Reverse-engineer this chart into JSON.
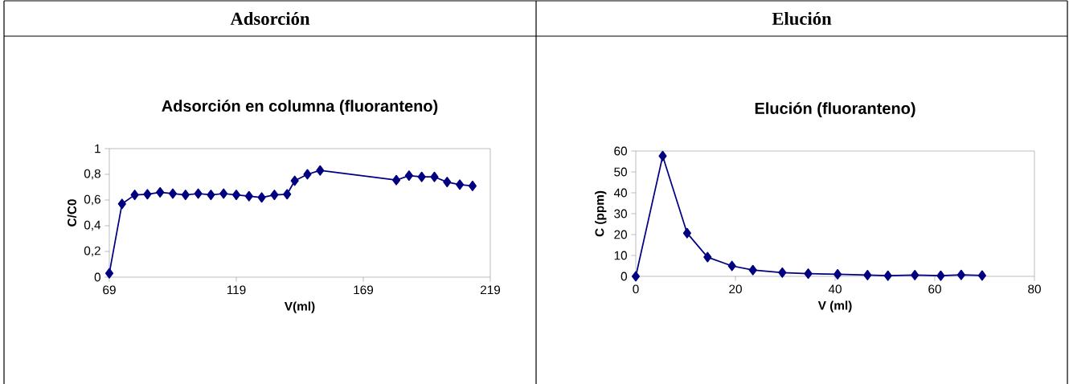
{
  "chart_data": [
    {
      "type": "line",
      "title": "Adsorción",
      "subtitle": "Adsorción en columna (fluoranteno)",
      "xlabel": "V(ml)",
      "ylabel": "C/C0",
      "x": [
        69,
        74,
        79,
        84,
        89,
        94,
        99,
        104,
        109,
        114,
        119,
        124,
        129,
        134,
        139,
        142,
        147,
        152,
        182,
        187,
        192,
        197,
        202,
        207,
        212
      ],
      "series": [
        {
          "color": "#000080",
          "values": [
            0.03,
            0.57,
            0.64,
            0.645,
            0.66,
            0.65,
            0.64,
            0.65,
            0.64,
            0.65,
            0.64,
            0.63,
            0.62,
            0.64,
            0.645,
            0.75,
            0.8,
            0.83,
            0.755,
            0.79,
            0.78,
            0.78,
            0.74,
            0.72,
            0.71
          ]
        }
      ],
      "xlim": [
        69,
        219
      ],
      "xticks": [
        69,
        119,
        169,
        219
      ],
      "ylim": [
        0,
        1
      ],
      "yticks": [
        0,
        {
          "value": 0.2,
          "label": "0,2"
        },
        {
          "value": 0.4,
          "label": "0,4"
        },
        {
          "value": 0.6,
          "label": "0,6"
        },
        {
          "value": 0.8,
          "label": "0,8"
        },
        1
      ],
      "marker": "diamond",
      "line_style": "solid"
    },
    {
      "type": "line",
      "title": "Elución",
      "subtitle": "Elución (fluoranteno)",
      "xlabel": "V (ml)",
      "ylabel": "C (ppm)",
      "x": [
        0,
        5.4,
        10.3,
        14.4,
        19.3,
        23.5,
        29.4,
        34.6,
        40.5,
        46.5,
        50.6,
        56.0,
        61.2,
        65.3,
        69.5
      ],
      "series": [
        {
          "color": "#000080",
          "values": [
            0,
            57.6,
            20.7,
            9.2,
            5.0,
            3.0,
            1.8,
            1.3,
            1.0,
            0.6,
            0.3,
            0.6,
            0.3,
            0.7,
            0.4
          ]
        }
      ],
      "xlim": [
        0,
        80
      ],
      "xticks": [
        0,
        20,
        40,
        60,
        80
      ],
      "ylim": [
        0,
        60
      ],
      "yticks": [
        0,
        10,
        20,
        30,
        40,
        50,
        60
      ],
      "marker": "diamond",
      "line_style": "solid"
    }
  ]
}
